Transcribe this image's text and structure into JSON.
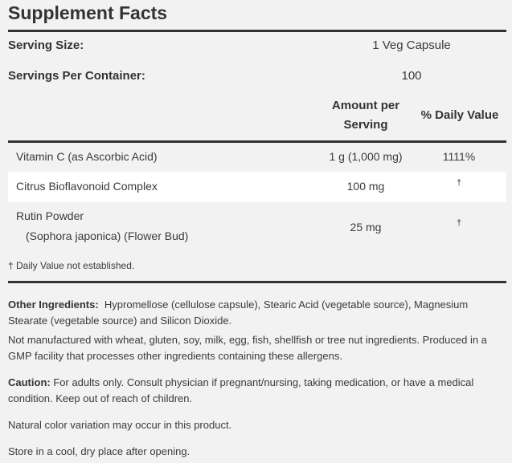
{
  "title": "Supplement Facts",
  "serving": {
    "size_label": "Serving Size:",
    "size_value": "1 Veg Capsule",
    "per_container_label": "Servings Per Container:",
    "per_container_value": "100"
  },
  "table": {
    "headers": {
      "amount": "Amount per Serving",
      "daily_value": "% Daily Value"
    },
    "rows": [
      {
        "name": "Vitamin C (as Ascorbic Acid)",
        "sub": "",
        "amount": "1 g (1,000 mg)",
        "dv": "1111%"
      },
      {
        "name": "Citrus Bioflavonoid Complex",
        "sub": "",
        "amount": "100 mg",
        "dv": "†"
      },
      {
        "name": "Rutin Powder",
        "sub": "(Sophora japonica) (Flower Bud)",
        "amount": "25 mg",
        "dv": "†"
      }
    ],
    "footnote": "† Daily Value not established."
  },
  "info": {
    "other_label": "Other Ingredients:",
    "other_text": "Hypromellose (cellulose capsule), Stearic Acid (vegetable source), Magnesium Stearate (vegetable source) and Silicon Dioxide.",
    "allergen_text": "Not manufactured with wheat, gluten, soy, milk, egg, fish, shellfish or tree nut ingredients. Produced in a GMP facility that processes other ingredients containing these allergens.",
    "caution_label": "Caution:",
    "caution_text": "For adults only. Consult physician if pregnant/nursing, taking medication, or have a medical condition. Keep out of reach of children.",
    "color_text": "Natural color variation may occur in this product.",
    "storage_text": "Store in a cool, dry place after opening."
  }
}
